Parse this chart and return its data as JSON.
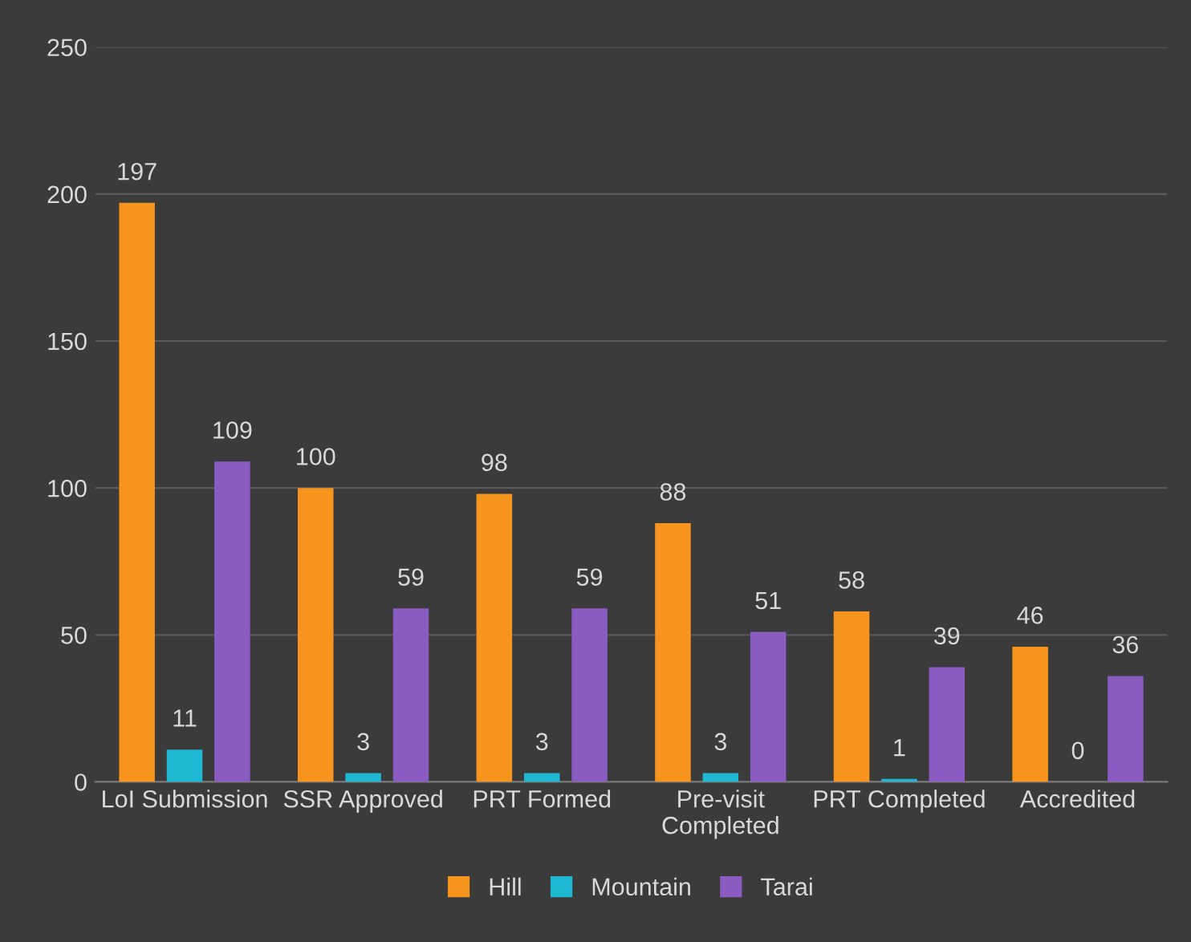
{
  "chart_data": {
    "type": "bar",
    "categories": [
      "LoI Submission",
      "SSR Approved",
      "PRT Formed",
      "Pre-visit\nCompleted",
      "PRT Completed",
      "Accredited"
    ],
    "series": [
      {
        "name": "Hill",
        "color": "#f7941d",
        "values": [
          197,
          100,
          98,
          88,
          58,
          46
        ]
      },
      {
        "name": "Mountain",
        "color": "#1fb8d2",
        "values": [
          11,
          3,
          3,
          3,
          1,
          0
        ]
      },
      {
        "name": "Tarai",
        "color": "#8a5cc2",
        "values": [
          109,
          59,
          59,
          51,
          39,
          36
        ]
      }
    ],
    "ylim": [
      0,
      250
    ],
    "yticks": [
      0,
      50,
      100,
      150,
      200,
      250
    ],
    "grid": "y",
    "legend": "bottom",
    "data_labels": true
  }
}
